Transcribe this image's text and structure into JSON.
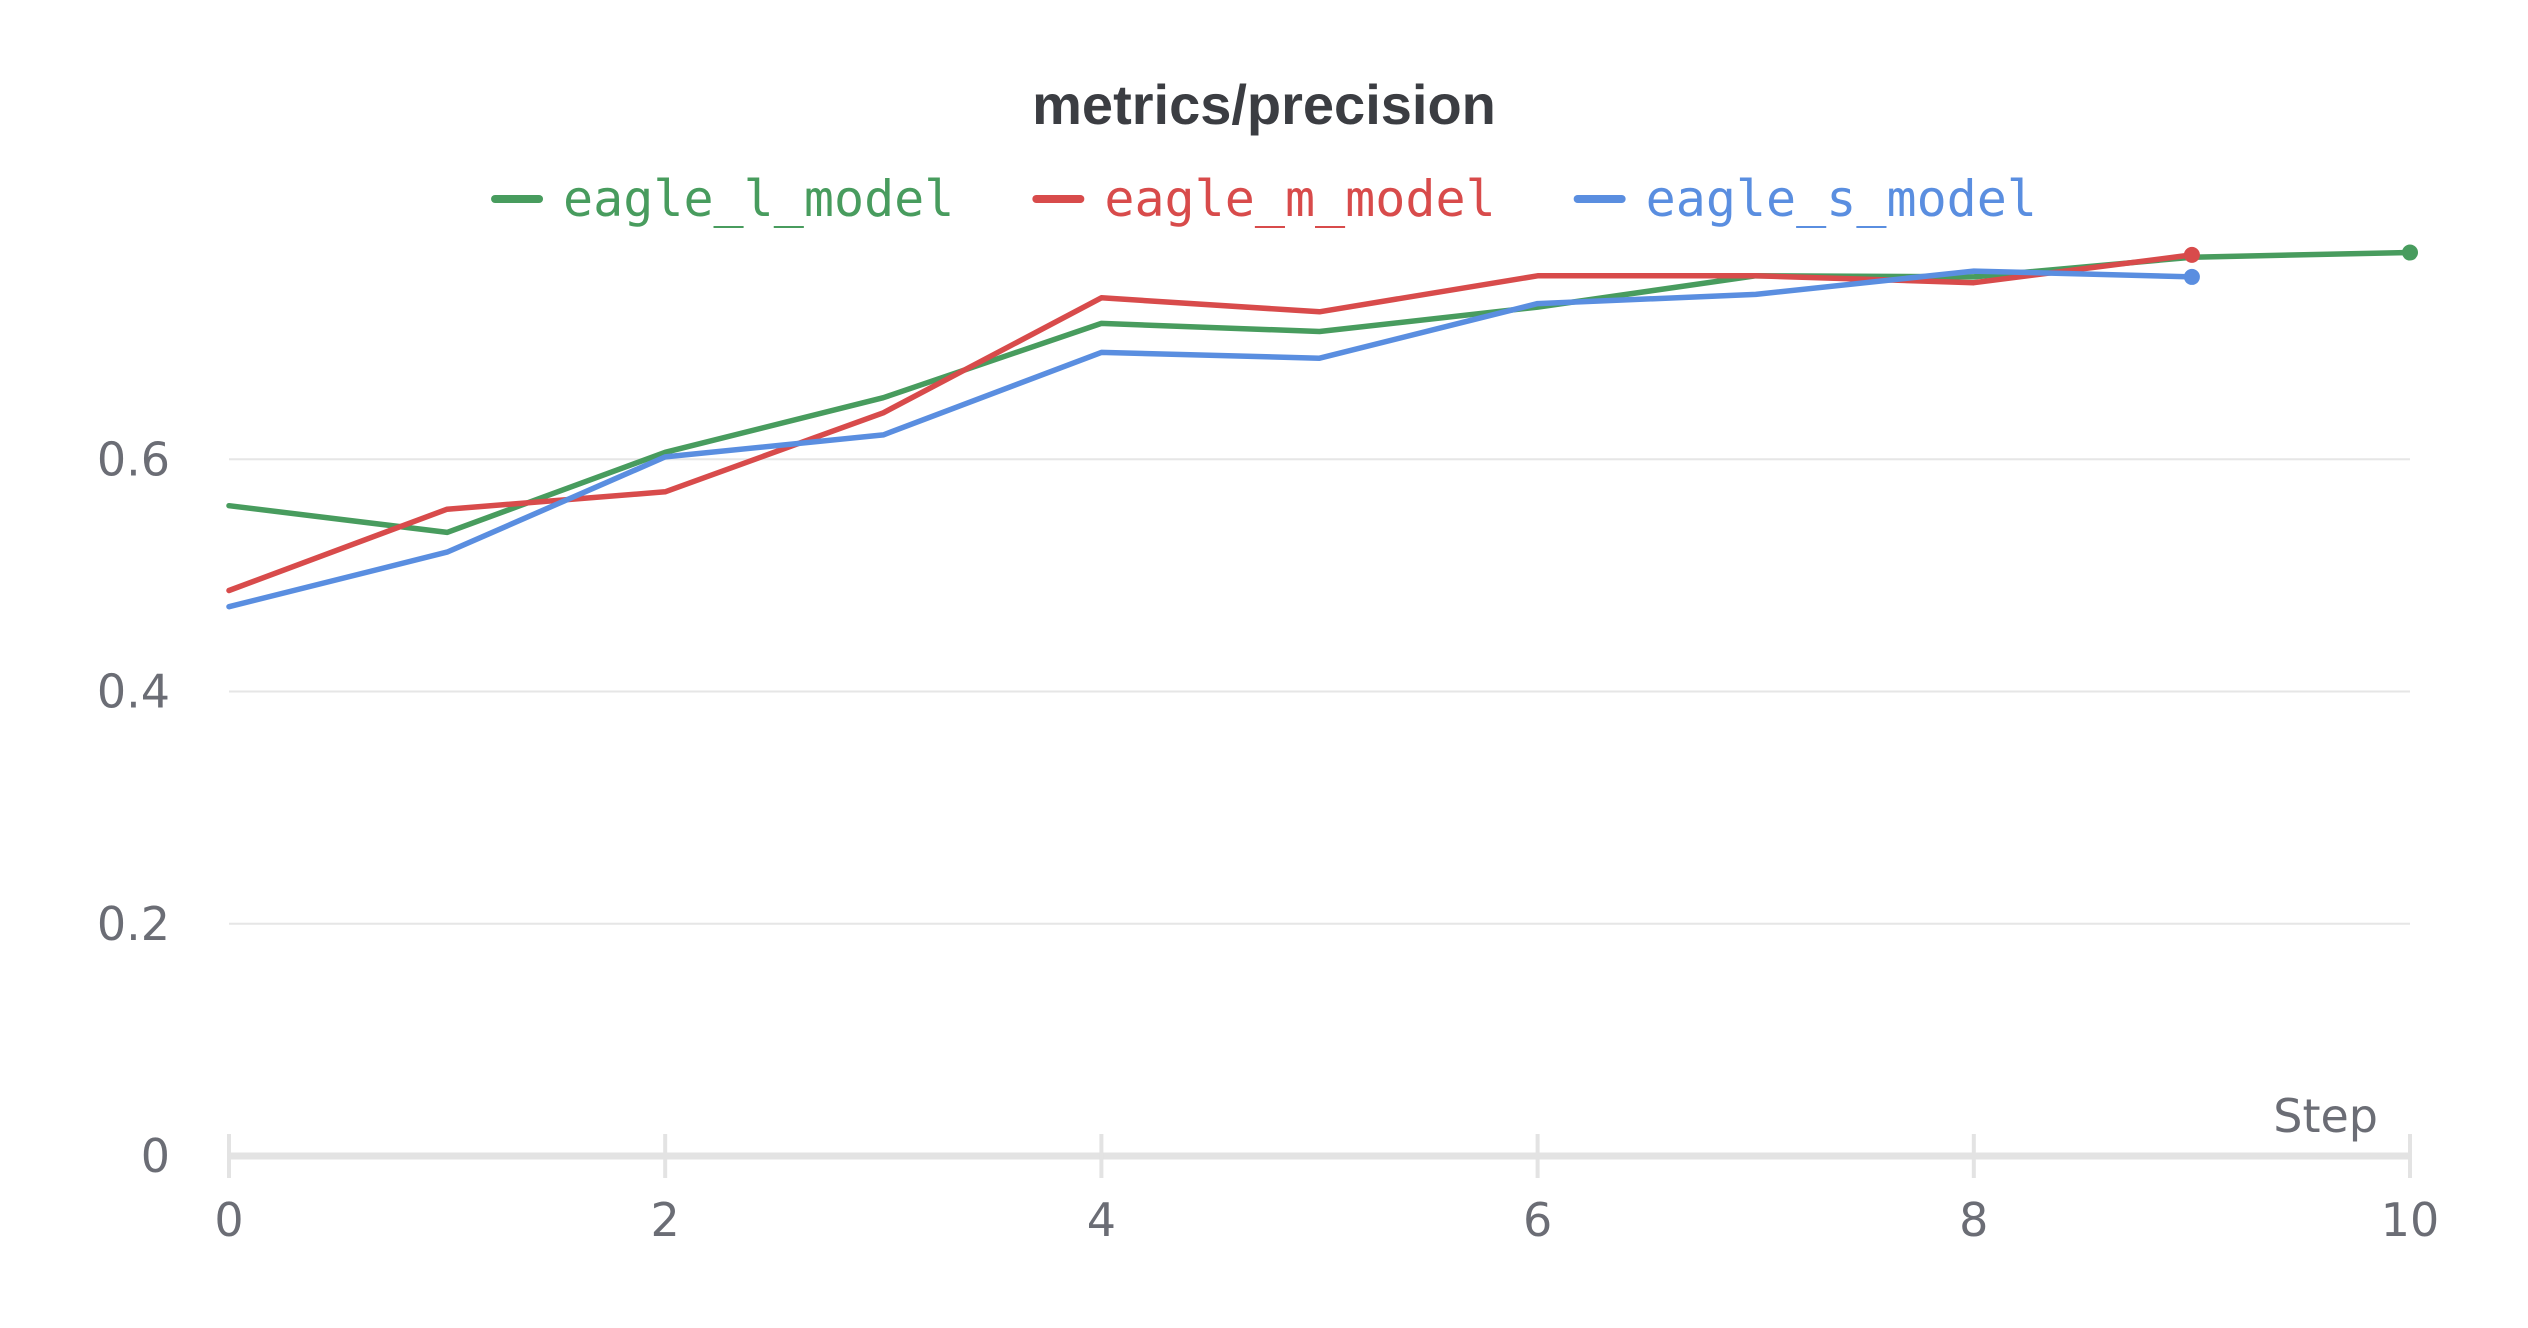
{
  "chart_data": {
    "type": "line",
    "title": "metrics/precision",
    "xlabel": "Step",
    "ylabel": "",
    "xlim": [
      0,
      10
    ],
    "ylim": [
      0,
      0.8
    ],
    "x_ticks": [
      "0",
      "2",
      "4",
      "6",
      "8",
      "10"
    ],
    "x_tick_values": [
      0,
      2,
      4,
      6,
      8,
      10
    ],
    "y_ticks": [
      "0",
      "0.2",
      "0.4",
      "0.6"
    ],
    "y_tick_values": [
      0,
      0.2,
      0.4,
      0.6
    ],
    "grid": true,
    "legend_position": "top",
    "series": [
      {
        "name": "eagle_l_model",
        "color": "#489c5e",
        "x": [
          0,
          1,
          2,
          3,
          4,
          5,
          6,
          7,
          8,
          9,
          10
        ],
        "values": [
          0.56,
          0.537,
          0.606,
          0.653,
          0.717,
          0.71,
          0.731,
          0.758,
          0.757,
          0.774,
          0.778
        ]
      },
      {
        "name": "eagle_m_model",
        "color": "#d84b4b",
        "x": [
          0,
          1,
          2,
          3,
          4,
          5,
          6,
          7,
          8,
          9
        ],
        "values": [
          0.487,
          0.557,
          0.572,
          0.64,
          0.739,
          0.727,
          0.758,
          0.758,
          0.752,
          0.776
        ]
      },
      {
        "name": "eagle_s_model",
        "color": "#5a8ee0",
        "x": [
          0,
          1,
          2,
          3,
          4,
          5,
          6,
          7,
          8,
          9
        ],
        "values": [
          0.473,
          0.52,
          0.602,
          0.621,
          0.692,
          0.687,
          0.734,
          0.742,
          0.762,
          0.757
        ]
      }
    ]
  }
}
